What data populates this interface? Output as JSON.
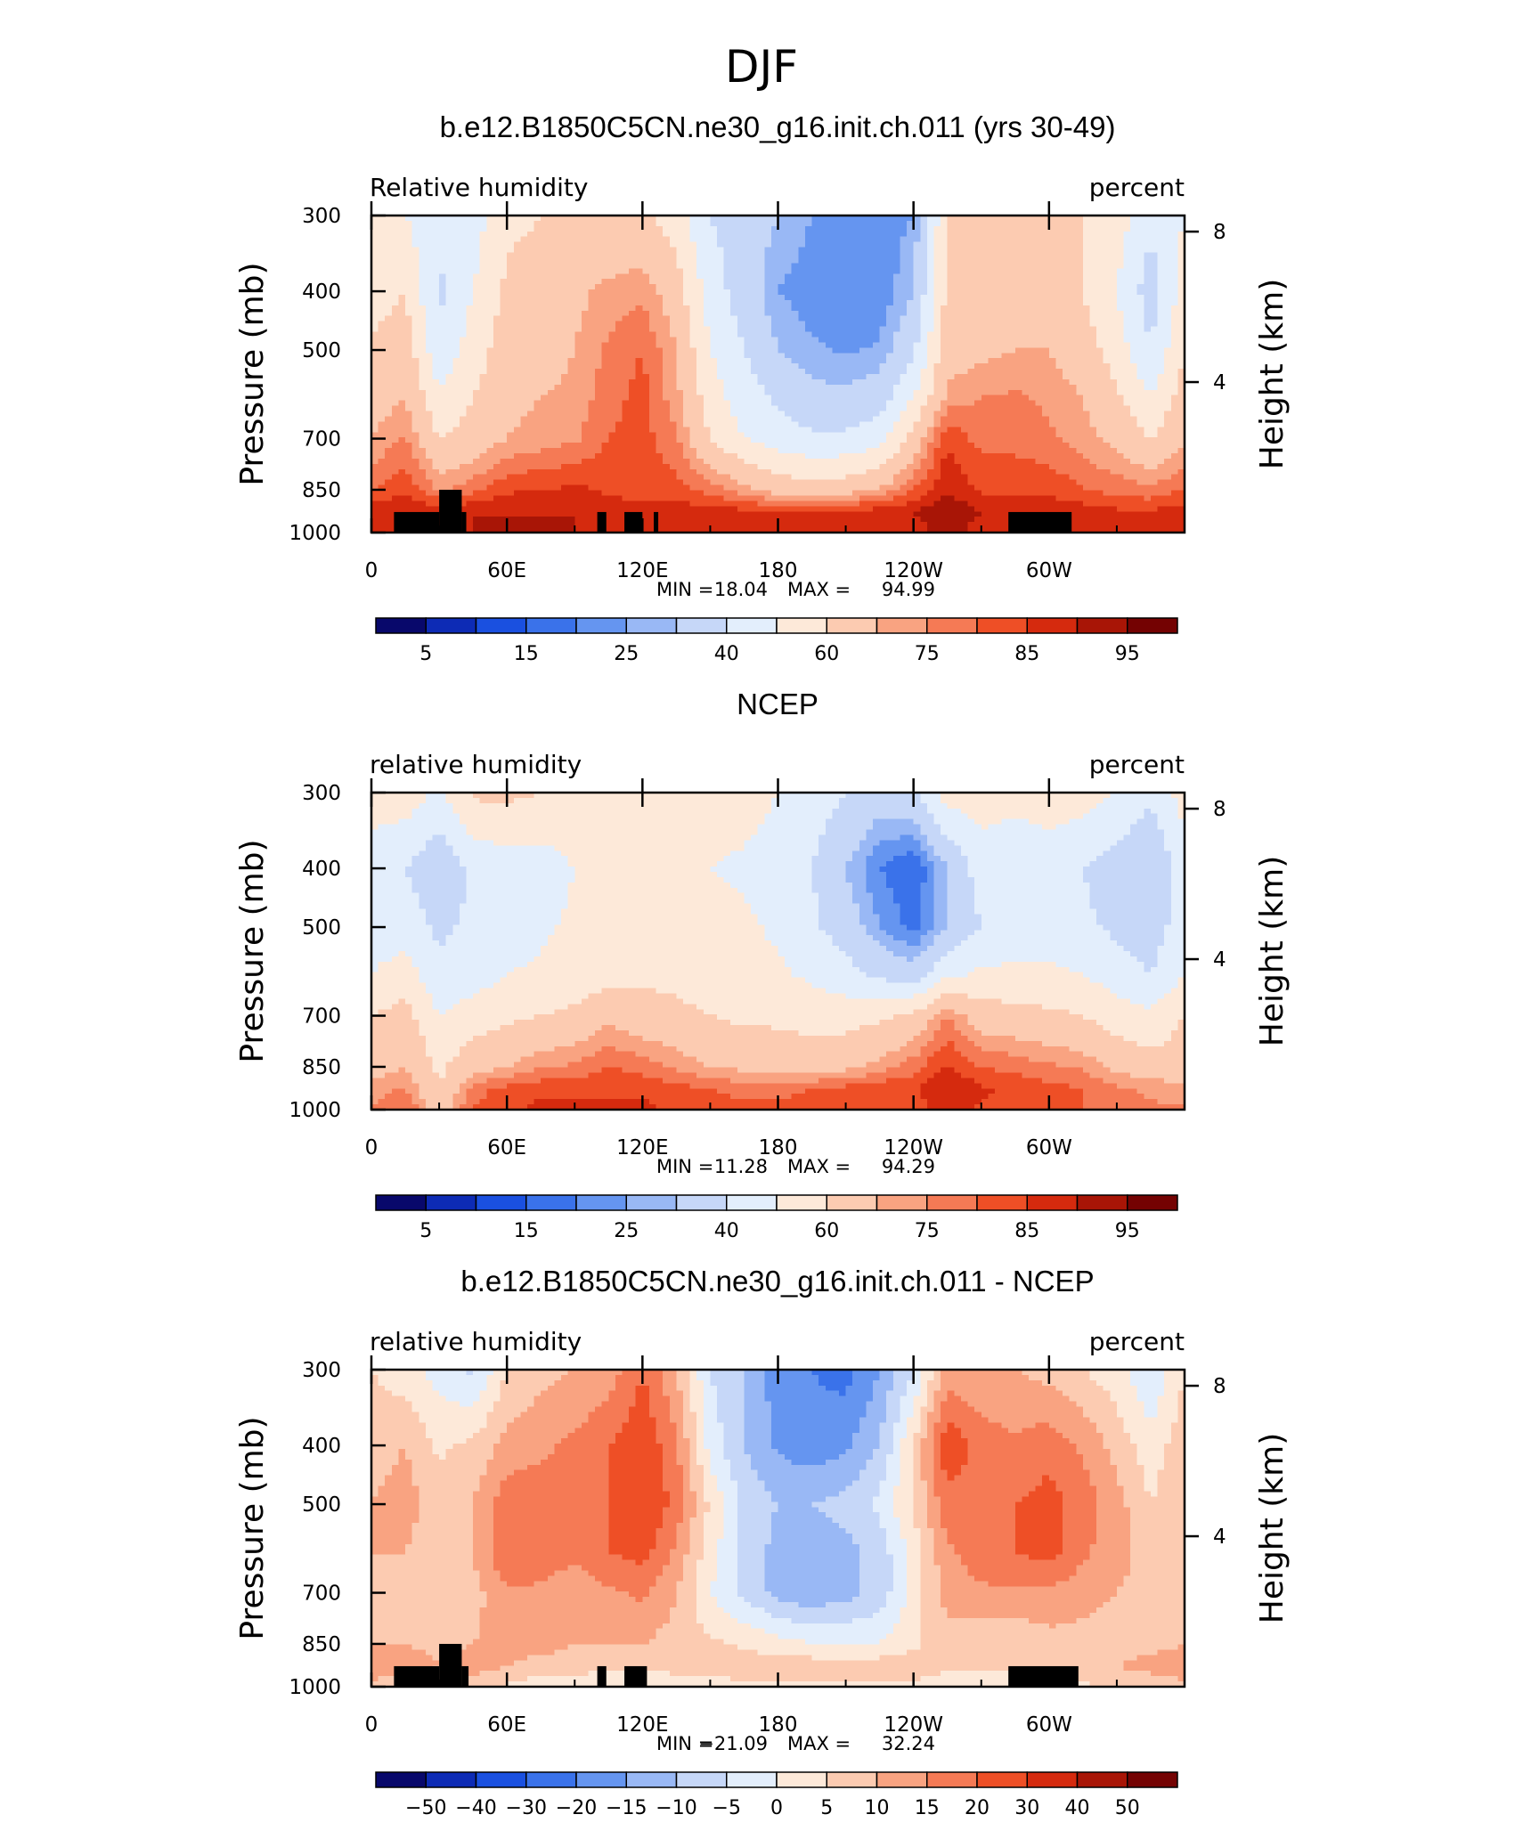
{
  "figure": {
    "title": "DJF"
  },
  "palette": [
    "#08086b",
    "#0d2bb5",
    "#1a50e0",
    "#3a72ea",
    "#6595f0",
    "#99b8f5",
    "#c6d7f8",
    "#e3eefc",
    "#fde9d9",
    "#fccbb1",
    "#f9a381",
    "#f57a55",
    "#ee4f26",
    "#d52a0e",
    "#a81506",
    "#740202"
  ],
  "plots": [
    {
      "title": "b.e12.B1850C5CN.ne30_g16.init.ch.011 (yrs 30-49)",
      "left_label": "Relative humidity",
      "right_label": "percent",
      "y_axis_label": "Pressure (mb)",
      "right_axis_label": "Height (km)",
      "min_label": "MIN =",
      "min_value": "18.04",
      "max_label": "MAX =",
      "max_value": "94.99",
      "colorbar_labels": [
        "5",
        "15",
        "25",
        "40",
        "60",
        "75",
        "85",
        "95"
      ]
    },
    {
      "title": "NCEP",
      "left_label": "relative humidity",
      "right_label": "percent",
      "y_axis_label": "Pressure (mb)",
      "right_axis_label": "Height (km)",
      "min_label": "MIN =",
      "min_value": "11.28",
      "max_label": "MAX =",
      "max_value": "94.29",
      "colorbar_labels": [
        "5",
        "15",
        "25",
        "40",
        "60",
        "75",
        "85",
        "95"
      ]
    },
    {
      "title": "b.e12.B1850C5CN.ne30_g16.init.ch.011 - NCEP",
      "left_label": "relative humidity",
      "right_label": "percent",
      "y_axis_label": "Pressure (mb)",
      "right_axis_label": "Height (km)",
      "min_label": "MIN =",
      "min_value": "−21.09",
      "max_label": "MAX =",
      "max_value": "32.24",
      "colorbar_labels": [
        "−50",
        "−40",
        "−30",
        "−20",
        "−15",
        "−10",
        "−5",
        "0",
        "5",
        "10",
        "15",
        "20",
        "30",
        "40",
        "50"
      ]
    }
  ],
  "chart_data": [
    {
      "type": "heatmap",
      "title": "b.e12.B1850C5CN.ne30_g16.init.ch.011 (yrs 30-49)",
      "xlabel": "",
      "ylabel": "Pressure (mb)",
      "x_ticks": [
        "0",
        "60E",
        "120E",
        "180",
        "120W",
        "60W"
      ],
      "x_tick_values": [
        0,
        60,
        120,
        180,
        240,
        300
      ],
      "xlim": [
        0,
        360
      ],
      "y_ticks": [
        300,
        400,
        500,
        700,
        850,
        1000
      ],
      "ylim": [
        1000,
        300
      ],
      "y_scale": "log",
      "right_axis": {
        "label": "Height (km)",
        "ticks": [
          4,
          8
        ]
      },
      "levels": [
        5,
        10,
        15,
        20,
        25,
        30,
        40,
        50,
        60,
        70,
        75,
        80,
        85,
        90,
        95
      ],
      "min": 18.04,
      "max": 94.99,
      "lon": [
        0,
        15,
        30,
        45,
        60,
        75,
        90,
        105,
        120,
        135,
        150,
        165,
        180,
        195,
        210,
        225,
        240,
        255,
        270,
        285,
        300,
        315,
        330,
        345,
        360
      ],
      "plev": [
        300,
        400,
        500,
        600,
        700,
        850,
        925,
        1000
      ],
      "values": [
        [
          52,
          50,
          42,
          45,
          58,
          60,
          65,
          60,
          62,
          55,
          40,
          35,
          30,
          25,
          22,
          22,
          25,
          60,
          60,
          62,
          60,
          60,
          55,
          42,
          50
        ],
        [
          55,
          60,
          38,
          50,
          62,
          63,
          68,
          72,
          74,
          65,
          45,
          35,
          25,
          22,
          20,
          21,
          30,
          62,
          62,
          65,
          62,
          60,
          50,
          35,
          55
        ],
        [
          62,
          66,
          42,
          55,
          65,
          66,
          70,
          76,
          80,
          70,
          50,
          40,
          30,
          26,
          24,
          26,
          38,
          66,
          68,
          70,
          70,
          65,
          55,
          40,
          60
        ],
        [
          66,
          70,
          52,
          60,
          68,
          70,
          72,
          78,
          82,
          72,
          55,
          45,
          38,
          33,
          32,
          35,
          50,
          72,
          75,
          76,
          74,
          70,
          62,
          50,
          65
        ],
        [
          70,
          76,
          60,
          64,
          70,
          72,
          74,
          80,
          82,
          76,
          60,
          50,
          45,
          42,
          42,
          46,
          64,
          84,
          78,
          78,
          76,
          72,
          68,
          60,
          68
        ],
        [
          80,
          84,
          74,
          78,
          84,
          85,
          86,
          84,
          82,
          82,
          78,
          72,
          66,
          64,
          66,
          70,
          80,
          90,
          84,
          84,
          84,
          80,
          78,
          76,
          80
        ],
        [
          88,
          90,
          88,
          90,
          90,
          90,
          90,
          88,
          88,
          88,
          88,
          87,
          86,
          86,
          87,
          88,
          90,
          94,
          90,
          90,
          88,
          88,
          86,
          86,
          88
        ],
        [
          86,
          88,
          88,
          90,
          90,
          90,
          90,
          88,
          88,
          88,
          88,
          88,
          88,
          88,
          88,
          88,
          88,
          92,
          88,
          88,
          86,
          86,
          86,
          86,
          86
        ]
      ],
      "topography": [
        [
          10,
          30,
          1000,
          925
        ],
        [
          30,
          40,
          1000,
          850
        ],
        [
          40,
          42,
          1000,
          925
        ],
        [
          100,
          104,
          1000,
          925
        ],
        [
          112,
          120,
          1000,
          925
        ],
        [
          125,
          127,
          1000,
          925
        ],
        [
          282,
          310,
          1000,
          925
        ]
      ]
    },
    {
      "type": "heatmap",
      "title": "NCEP",
      "xlabel": "",
      "ylabel": "Pressure (mb)",
      "x_ticks": [
        "0",
        "60E",
        "120E",
        "180",
        "120W",
        "60W"
      ],
      "x_tick_values": [
        0,
        60,
        120,
        180,
        240,
        300
      ],
      "xlim": [
        0,
        360
      ],
      "y_ticks": [
        300,
        400,
        500,
        700,
        850,
        1000
      ],
      "ylim": [
        1000,
        300
      ],
      "y_scale": "log",
      "right_axis": {
        "label": "Height (km)",
        "ticks": [
          4,
          8
        ]
      },
      "levels": [
        5,
        10,
        15,
        20,
        25,
        30,
        40,
        50,
        60,
        70,
        75,
        80,
        85,
        90,
        95
      ],
      "min": 11.28,
      "max": 94.29,
      "lon": [
        0,
        15,
        30,
        45,
        60,
        75,
        90,
        105,
        120,
        135,
        150,
        165,
        180,
        195,
        210,
        225,
        240,
        255,
        270,
        285,
        300,
        315,
        330,
        345,
        360
      ],
      "plev": [
        300,
        400,
        500,
        600,
        700,
        850,
        925,
        1000
      ],
      "values": [
        [
          55,
          56,
          48,
          62,
          62,
          60,
          58,
          58,
          58,
          58,
          56,
          55,
          50,
          46,
          40,
          35,
          38,
          55,
          55,
          52,
          55,
          55,
          50,
          42,
          55
        ],
        [
          45,
          40,
          32,
          42,
          45,
          45,
          50,
          50,
          50,
          50,
          50,
          48,
          45,
          40,
          30,
          20,
          15,
          30,
          45,
          45,
          45,
          40,
          35,
          30,
          45
        ],
        [
          45,
          45,
          38,
          42,
          45,
          48,
          52,
          54,
          56,
          56,
          55,
          52,
          48,
          42,
          35,
          25,
          18,
          30,
          40,
          45,
          45,
          42,
          38,
          35,
          45
        ],
        [
          50,
          55,
          42,
          45,
          50,
          52,
          55,
          56,
          58,
          58,
          56,
          54,
          52,
          48,
          44,
          38,
          35,
          48,
          52,
          52,
          52,
          50,
          45,
          40,
          50
        ],
        [
          60,
          64,
          50,
          55,
          58,
          60,
          62,
          68,
          64,
          62,
          60,
          58,
          58,
          56,
          56,
          58,
          62,
          75,
          65,
          64,
          62,
          60,
          55,
          52,
          60
        ],
        [
          66,
          70,
          58,
          66,
          70,
          74,
          76,
          80,
          78,
          74,
          70,
          68,
          66,
          66,
          68,
          72,
          78,
          86,
          80,
          78,
          76,
          74,
          68,
          64,
          66
        ],
        [
          72,
          76,
          60,
          78,
          82,
          84,
          84,
          84,
          84,
          82,
          80,
          78,
          78,
          80,
          82,
          84,
          84,
          90,
          86,
          84,
          82,
          80,
          76,
          74,
          72
        ],
        [
          76,
          80,
          66,
          80,
          84,
          86,
          86,
          86,
          86,
          84,
          82,
          82,
          82,
          82,
          82,
          82,
          82,
          88,
          84,
          84,
          82,
          80,
          78,
          76,
          76
        ]
      ]
    },
    {
      "type": "heatmap",
      "title": "b.e12.B1850C5CN.ne30_g16.init.ch.011 - NCEP",
      "xlabel": "",
      "ylabel": "Pressure (mb)",
      "x_ticks": [
        "0",
        "60E",
        "120E",
        "180",
        "120W",
        "60W"
      ],
      "x_tick_values": [
        0,
        60,
        120,
        180,
        240,
        300
      ],
      "xlim": [
        0,
        360
      ],
      "y_ticks": [
        300,
        400,
        500,
        700,
        850,
        1000
      ],
      "ylim": [
        1000,
        300
      ],
      "y_scale": "log",
      "right_axis": {
        "label": "Height (km)",
        "ticks": [
          4,
          8
        ]
      },
      "levels": [
        -50,
        -40,
        -30,
        -20,
        -15,
        -10,
        -5,
        0,
        5,
        10,
        15,
        20,
        30,
        40,
        50
      ],
      "min": -21.09,
      "max": 32.24,
      "lon": [
        0,
        15,
        30,
        45,
        60,
        75,
        90,
        105,
        120,
        135,
        150,
        165,
        180,
        195,
        210,
        225,
        240,
        255,
        270,
        285,
        300,
        315,
        330,
        345,
        360
      ],
      "plev": [
        300,
        400,
        500,
        600,
        700,
        850,
        925,
        1000
      ],
      "values": [
        [
          5,
          2,
          -2,
          -6,
          5,
          8,
          10,
          12,
          20,
          10,
          -5,
          -10,
          -18,
          -20,
          -22,
          -15,
          -5,
          12,
          10,
          10,
          8,
          5,
          2,
          -5,
          5
        ],
        [
          8,
          10,
          4,
          6,
          12,
          14,
          16,
          20,
          24,
          16,
          -2,
          -10,
          -16,
          -18,
          -16,
          -10,
          5,
          24,
          18,
          16,
          18,
          14,
          8,
          2,
          8
        ],
        [
          10,
          12,
          8,
          10,
          18,
          18,
          16,
          20,
          26,
          18,
          4,
          -6,
          -10,
          -10,
          -8,
          -4,
          6,
          18,
          18,
          20,
          22,
          18,
          12,
          5,
          10
        ],
        [
          10,
          10,
          6,
          10,
          20,
          18,
          16,
          20,
          22,
          14,
          2,
          -6,
          -12,
          -14,
          -12,
          -8,
          2,
          14,
          18,
          20,
          22,
          16,
          12,
          8,
          10
        ],
        [
          8,
          8,
          6,
          8,
          14,
          14,
          12,
          14,
          16,
          10,
          0,
          -6,
          -12,
          -14,
          -12,
          -8,
          2,
          12,
          14,
          14,
          14,
          12,
          10,
          8,
          8
        ],
        [
          10,
          10,
          8,
          10,
          12,
          12,
          10,
          10,
          10,
          8,
          6,
          4,
          2,
          0,
          0,
          0,
          4,
          8,
          6,
          6,
          8,
          8,
          8,
          8,
          10
        ],
        [
          14,
          14,
          10,
          12,
          10,
          8,
          8,
          6,
          6,
          8,
          8,
          8,
          8,
          8,
          8,
          8,
          8,
          6,
          6,
          6,
          6,
          8,
          10,
          12,
          14
        ],
        [
          8,
          6,
          6,
          8,
          4,
          2,
          2,
          0,
          0,
          0,
          2,
          4,
          4,
          4,
          4,
          4,
          4,
          2,
          2,
          2,
          2,
          4,
          6,
          6,
          8
        ]
      ],
      "topography": [
        [
          10,
          30,
          1000,
          925
        ],
        [
          30,
          40,
          1000,
          850
        ],
        [
          40,
          43,
          1000,
          925
        ],
        [
          100,
          104,
          1000,
          925
        ],
        [
          112,
          122,
          1000,
          925
        ],
        [
          282,
          313,
          1000,
          925
        ]
      ]
    }
  ]
}
